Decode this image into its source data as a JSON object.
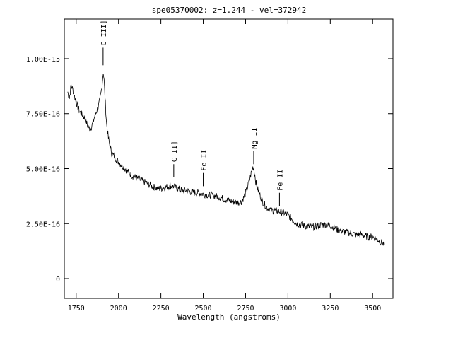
{
  "chart_data": {
    "type": "line",
    "title": "spe05370002: z=1.244 - vel=372942",
    "xlabel": "Wavelength (angstroms)",
    "ylabel": "",
    "xlim": [
      1680,
      3620
    ],
    "ylim": [
      -9e-17,
      1.18e-15
    ],
    "x_ticks": [
      1750,
      2000,
      2250,
      2500,
      2750,
      3000,
      3250,
      3500
    ],
    "x_tick_labels": [
      "1750",
      "2000",
      "2250",
      "2500",
      "2750",
      "3000",
      "3250",
      "3500"
    ],
    "y_ticks": [
      0,
      2.5e-16,
      5e-16,
      7.5e-16,
      1e-15
    ],
    "y_tick_labels": [
      "0",
      "2.50E-16",
      "5.00E-16",
      "7.50E-16",
      "1.00E-15"
    ],
    "grid": false,
    "series": [
      {
        "x": [
          1700,
          1710,
          1720,
          1730,
          1740,
          1750,
          1760,
          1770,
          1780,
          1790,
          1800,
          1810,
          1820,
          1830,
          1840,
          1850,
          1860,
          1870,
          1880,
          1890,
          1900,
          1905,
          1910,
          1915,
          1920,
          1925,
          1930,
          1940,
          1950,
          1960,
          1970,
          1980,
          2000,
          2025,
          2050,
          2075,
          2100,
          2125,
          2150,
          2175,
          2200,
          2225,
          2250,
          2275,
          2300,
          2325,
          2350,
          2375,
          2400,
          2425,
          2450,
          2475,
          2500,
          2525,
          2550,
          2575,
          2600,
          2625,
          2650,
          2675,
          2700,
          2725,
          2740,
          2750,
          2760,
          2770,
          2780,
          2790,
          2795,
          2800,
          2805,
          2810,
          2820,
          2830,
          2840,
          2850,
          2860,
          2870,
          2880,
          2890,
          2900,
          2925,
          2950,
          2975,
          3000,
          3025,
          3050,
          3075,
          3100,
          3125,
          3150,
          3175,
          3200,
          3225,
          3250,
          3275,
          3300,
          3325,
          3350,
          3375,
          3400,
          3425,
          3450,
          3475,
          3500,
          3525,
          3550,
          3570
        ],
        "y": [
          8.5e-16,
          8.2e-16,
          8.8e-16,
          8.6e-16,
          8.3e-16,
          8e-16,
          7.8e-16,
          7.6e-16,
          7.5e-16,
          7.4e-16,
          7.3e-16,
          7.1e-16,
          6.9e-16,
          6.8e-16,
          6.9e-16,
          7.1e-16,
          7.4e-16,
          7.6e-16,
          7.8e-16,
          8.1e-16,
          8.6e-16,
          9e-16,
          9.4e-16,
          9e-16,
          8.3e-16,
          7.6e-16,
          7e-16,
          6.4e-16,
          6e-16,
          5.7e-16,
          5.6e-16,
          5.5e-16,
          5.3e-16,
          5.1e-16,
          4.9e-16,
          4.7e-16,
          4.6e-16,
          4.5e-16,
          4.4e-16,
          4.3e-16,
          4.2e-16,
          4.1e-16,
          4.1e-16,
          4.15e-16,
          4.2e-16,
          4.2e-16,
          4.1e-16,
          4e-16,
          4e-16,
          3.95e-16,
          3.9e-16,
          3.9e-16,
          3.85e-16,
          3.8e-16,
          3.8e-16,
          3.75e-16,
          3.7e-16,
          3.6e-16,
          3.55e-16,
          3.5e-16,
          3.45e-16,
          3.5e-16,
          3.7e-16,
          3.9e-16,
          4.1e-16,
          4.4e-16,
          4.7e-16,
          5e-16,
          5.1e-16,
          4.9e-16,
          4.7e-16,
          4.4e-16,
          4.1e-16,
          3.9e-16,
          3.7e-16,
          3.5e-16,
          3.4e-16,
          3.3e-16,
          3.2e-16,
          3.2e-16,
          3.1e-16,
          3.1e-16,
          3.05e-16,
          3e-16,
          2.9e-16,
          2.7e-16,
          2.5e-16,
          2.45e-16,
          2.4e-16,
          2.35e-16,
          2.35e-16,
          2.4e-16,
          2.45e-16,
          2.45e-16,
          2.4e-16,
          2.3e-16,
          2.2e-16,
          2.15e-16,
          2.1e-16,
          2.05e-16,
          2e-16,
          2e-16,
          1.95e-16,
          1.9e-16,
          1.9e-16,
          1.8e-16,
          1.65e-16,
          1.55e-16
        ]
      }
    ],
    "annotations": [
      {
        "label": "C III]",
        "x": 1909,
        "y_from": 9.7e-16,
        "y_to": 1.05e-15
      },
      {
        "label": "C II]",
        "x": 2326,
        "y_from": 4.6e-16,
        "y_to": 5.2e-16
      },
      {
        "label": "Fe II",
        "x": 2500,
        "y_from": 4.2e-16,
        "y_to": 4.8e-16
      },
      {
        "label": "Mg II",
        "x": 2798,
        "y_from": 5.2e-16,
        "y_to": 5.8e-16
      },
      {
        "label": "Fe II",
        "x": 2950,
        "y_from": 3.3e-16,
        "y_to": 3.9e-16
      }
    ]
  }
}
